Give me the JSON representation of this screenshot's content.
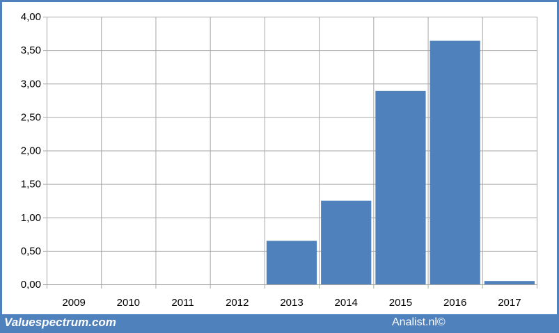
{
  "footer": {
    "brand": "Valuespectrum.com",
    "credit": "Analist.nl©"
  },
  "colors": {
    "frame": "#4f81bd",
    "bar": "#4f81bd",
    "grid": "#a6a6a6",
    "background": "#ffffff"
  },
  "chart_data": {
    "type": "bar",
    "title": "",
    "xlabel": "",
    "ylabel": "",
    "categories": [
      "2009",
      "2010",
      "2011",
      "2012",
      "2013",
      "2014",
      "2015",
      "2016",
      "2017"
    ],
    "values": [
      0,
      0,
      0,
      0,
      0.65,
      1.25,
      2.89,
      3.64,
      0.05
    ],
    "ylim": [
      0,
      4
    ],
    "yticks": [
      0,
      0.5,
      1,
      1.5,
      2,
      2.5,
      3,
      3.5,
      4
    ],
    "ytick_labels": [
      "0,00",
      "0,50",
      "1,00",
      "1,50",
      "2,00",
      "2,50",
      "3,00",
      "3,50",
      "4,00"
    ],
    "grid": true,
    "legend": "none"
  }
}
